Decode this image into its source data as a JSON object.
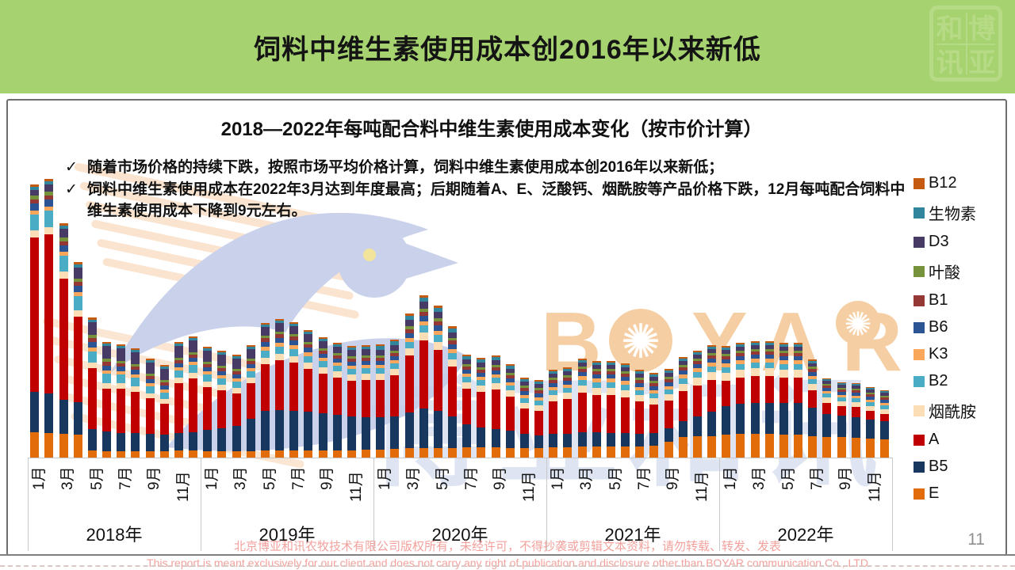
{
  "header": {
    "title": "饲料中维生素使用成本创2016年以来新低",
    "logo_chars": [
      "和",
      "博",
      "讯",
      "亚"
    ],
    "bg_color": "#A6D36F"
  },
  "chart": {
    "title": "2018—2022年每吨配合料中维生素使用成本变化（按市价计算）",
    "bullets": [
      "随着市场价格的持续下跌，按照市场平均价格计算，饲料中维生素使用成本创2016年以来新低；",
      "饲料中维生素使用成本在2022年3月达到年度最高；后期随着A、E、泛酸钙、烟酰胺等产品价格下跌，12月每吨配合饲料中维生素使用成本下降到9元左右。"
    ],
    "check_glyph": "✓",
    "years": [
      "2018年",
      "2019年",
      "2020年",
      "2021年",
      "2022年"
    ],
    "month_labels": [
      "1月",
      "3月",
      "5月",
      "7月",
      "9月",
      "11月"
    ],
    "legend": [
      {
        "label": "B12",
        "color": "#C55A11"
      },
      {
        "label": "生物素",
        "color": "#31859C"
      },
      {
        "label": "D3",
        "color": "#473B66"
      },
      {
        "label": "叶酸",
        "color": "#76933C"
      },
      {
        "label": "B1",
        "color": "#953735"
      },
      {
        "label": "B6",
        "color": "#2A5494"
      },
      {
        "label": "K3",
        "color": "#FAA75B"
      },
      {
        "label": "B2",
        "color": "#4BACC6"
      },
      {
        "label": "烟酰胺",
        "color": "#FBDDB6"
      },
      {
        "label": "A",
        "color": "#C00000"
      },
      {
        "label": "B5",
        "color": "#17375E"
      },
      {
        "label": "E",
        "color": "#E36C0A"
      }
    ]
  },
  "chart_data": {
    "type": "bar",
    "stacked": true,
    "title": "2018—2022年每吨配合料中维生素使用成本变化（按市价计算）",
    "x_years": [
      "2018",
      "2019",
      "2020",
      "2021",
      "2022"
    ],
    "x_months_per_year": 12,
    "value_unit": "元/吨",
    "note": "图中无数值轴；数值按比例估算，2022年12月约9元，2018年2月最高约39元",
    "stack_order_bottom_to_top": [
      "E",
      "B5",
      "A",
      "烟酰胺",
      "B2",
      "K3",
      "B6",
      "B1",
      "叶酸",
      "D3",
      "生物素",
      "B12"
    ],
    "series": [
      {
        "name": "E",
        "values": [
          3.5,
          3.4,
          3.3,
          3.2,
          1.0,
          0.9,
          0.9,
          0.9,
          0.9,
          0.9,
          1.0,
          1.0,
          0.9,
          0.9,
          0.9,
          0.9,
          1.0,
          1.0,
          1.0,
          1.0,
          1.0,
          1.0,
          1.0,
          1.1,
          1.1,
          1.2,
          1.3,
          1.3,
          1.3,
          1.3,
          1.4,
          1.4,
          1.4,
          1.3,
          1.3,
          1.3,
          1.4,
          1.4,
          1.5,
          1.5,
          1.5,
          1.5,
          1.6,
          1.7,
          2.2,
          2.9,
          3.0,
          3.0,
          3.2,
          3.3,
          3.3,
          3.3,
          3.2,
          3.2,
          3.0,
          2.9,
          2.9,
          2.8,
          2.7,
          2.6
        ]
      },
      {
        "name": "B5",
        "values": [
          5.7,
          5.5,
          4.8,
          4.5,
          3.0,
          2.8,
          2.6,
          2.5,
          2.4,
          2.3,
          2.4,
          2.5,
          3.0,
          3.2,
          3.5,
          4.5,
          5.5,
          5.7,
          5.6,
          5.4,
          5.2,
          5.0,
          4.8,
          4.6,
          4.5,
          4.6,
          5.0,
          5.5,
          5.2,
          4.4,
          3.2,
          2.8,
          2.6,
          2.4,
          2.0,
          1.8,
          1.9,
          1.9,
          2.0,
          2.0,
          1.9,
          1.9,
          1.8,
          1.8,
          1.9,
          2.2,
          2.8,
          3.4,
          4.0,
          4.2,
          4.3,
          4.3,
          4.4,
          4.4,
          4.0,
          3.2,
          3.0,
          2.9,
          2.7,
          2.5
        ]
      },
      {
        "name": "A",
        "values": [
          21.7,
          22.3,
          17.0,
          12.0,
          8.5,
          6.0,
          6.2,
          5.8,
          5.0,
          4.3,
          7.0,
          7.5,
          6.0,
          5.3,
          4.6,
          5.0,
          6.5,
          7.0,
          6.8,
          6.0,
          5.6,
          5.2,
          5.0,
          5.2,
          5.2,
          5.8,
          8.0,
          9.5,
          8.5,
          7.0,
          5.0,
          5.0,
          5.6,
          4.8,
          3.6,
          3.4,
          4.6,
          4.9,
          5.6,
          5.2,
          5.3,
          5.0,
          4.5,
          4.0,
          3.9,
          4.2,
          4.3,
          4.4,
          3.5,
          3.7,
          3.8,
          3.8,
          3.6,
          3.5,
          2.4,
          1.5,
          1.3,
          1.4,
          1.2,
          1.0
        ]
      },
      {
        "name": "烟酰胺",
        "values": [
          1.0,
          1.0,
          1.0,
          0.9,
          0.8,
          0.8,
          0.8,
          0.8,
          0.7,
          0.7,
          0.8,
          0.8,
          0.8,
          0.8,
          0.8,
          0.8,
          0.9,
          0.9,
          0.9,
          0.9,
          0.9,
          0.9,
          0.9,
          0.9,
          0.9,
          0.9,
          1.0,
          1.1,
          1.1,
          1.0,
          0.9,
          0.9,
          0.9,
          0.9,
          0.8,
          0.8,
          0.9,
          0.9,
          1.0,
          1.0,
          1.0,
          1.0,
          0.9,
          0.9,
          0.9,
          1.0,
          1.1,
          1.1,
          1.1,
          1.1,
          1.1,
          1.1,
          1.1,
          1.1,
          0.9,
          0.8,
          0.7,
          0.7,
          0.7,
          0.7
        ]
      },
      {
        "name": "B2",
        "values": [
          2.2,
          2.3,
          2.2,
          2.0,
          1.5,
          1.3,
          1.2,
          1.2,
          1.0,
          0.9,
          1.0,
          1.1,
          1.0,
          0.9,
          0.9,
          0.9,
          1.0,
          1.0,
          1.0,
          0.9,
          0.9,
          0.8,
          0.8,
          0.8,
          0.8,
          0.8,
          0.9,
          1.0,
          1.0,
          0.9,
          0.8,
          0.8,
          0.8,
          0.7,
          0.7,
          0.7,
          0.7,
          0.7,
          0.8,
          0.8,
          0.8,
          0.8,
          0.7,
          0.7,
          0.7,
          0.8,
          0.8,
          0.8,
          0.8,
          0.8,
          0.8,
          0.8,
          0.8,
          0.8,
          0.7,
          0.6,
          0.6,
          0.6,
          0.6,
          0.6
        ]
      },
      {
        "name": "K3",
        "values": [
          0.6,
          0.6,
          0.6,
          0.5,
          0.5,
          0.4,
          0.4,
          0.4,
          0.4,
          0.4,
          0.4,
          0.4,
          0.4,
          0.4,
          0.4,
          0.4,
          0.5,
          0.5,
          0.5,
          0.5,
          0.4,
          0.4,
          0.4,
          0.4,
          0.4,
          0.4,
          0.5,
          0.5,
          0.5,
          0.5,
          0.4,
          0.4,
          0.4,
          0.4,
          0.4,
          0.4,
          0.4,
          0.4,
          0.5,
          0.5,
          0.5,
          0.5,
          0.4,
          0.4,
          0.4,
          0.5,
          0.5,
          0.5,
          0.5,
          0.5,
          0.5,
          0.5,
          0.5,
          0.5,
          0.4,
          0.3,
          0.3,
          0.3,
          0.3,
          0.3
        ]
      },
      {
        "name": "B6",
        "values": [
          1.0,
          1.0,
          0.9,
          0.9,
          0.8,
          0.7,
          0.7,
          0.7,
          0.6,
          0.6,
          0.6,
          0.6,
          0.6,
          0.6,
          0.6,
          0.6,
          0.7,
          0.7,
          0.7,
          0.7,
          0.6,
          0.6,
          0.6,
          0.6,
          0.6,
          0.6,
          0.7,
          0.8,
          0.8,
          0.7,
          0.6,
          0.6,
          0.6,
          0.6,
          0.5,
          0.5,
          0.5,
          0.5,
          0.6,
          0.6,
          0.6,
          0.6,
          0.5,
          0.5,
          0.5,
          0.6,
          0.6,
          0.6,
          0.6,
          0.6,
          0.6,
          0.6,
          0.6,
          0.6,
          0.5,
          0.4,
          0.4,
          0.4,
          0.4,
          0.4
        ]
      },
      {
        "name": "B1",
        "values": [
          0.6,
          0.6,
          0.6,
          0.5,
          0.5,
          0.5,
          0.4,
          0.4,
          0.4,
          0.4,
          0.4,
          0.4,
          0.4,
          0.4,
          0.4,
          0.4,
          0.5,
          0.5,
          0.5,
          0.4,
          0.4,
          0.4,
          0.4,
          0.4,
          0.4,
          0.4,
          0.5,
          0.5,
          0.5,
          0.5,
          0.4,
          0.4,
          0.4,
          0.4,
          0.4,
          0.4,
          0.4,
          0.4,
          0.4,
          0.4,
          0.4,
          0.4,
          0.4,
          0.4,
          0.4,
          0.4,
          0.4,
          0.4,
          0.4,
          0.4,
          0.4,
          0.4,
          0.4,
          0.4,
          0.4,
          0.3,
          0.3,
          0.3,
          0.3,
          0.3
        ]
      },
      {
        "name": "叶酸",
        "values": [
          0.5,
          0.5,
          0.5,
          0.4,
          0.4,
          0.4,
          0.3,
          0.3,
          0.3,
          0.3,
          0.3,
          0.3,
          0.3,
          0.3,
          0.3,
          0.3,
          0.3,
          0.3,
          0.3,
          0.3,
          0.3,
          0.3,
          0.3,
          0.3,
          0.3,
          0.3,
          0.4,
          0.4,
          0.4,
          0.3,
          0.3,
          0.3,
          0.3,
          0.3,
          0.3,
          0.3,
          0.3,
          0.3,
          0.3,
          0.3,
          0.3,
          0.3,
          0.3,
          0.3,
          0.3,
          0.3,
          0.3,
          0.3,
          0.3,
          0.3,
          0.3,
          0.3,
          0.3,
          0.3,
          0.3,
          0.2,
          0.2,
          0.2,
          0.2,
          0.2
        ]
      },
      {
        "name": "D3",
        "values": [
          0.8,
          1.0,
          1.2,
          1.5,
          1.8,
          1.8,
          1.8,
          1.7,
          1.6,
          1.6,
          1.7,
          1.7,
          1.6,
          1.5,
          1.4,
          1.3,
          1.2,
          1.2,
          1.1,
          1.1,
          1.0,
          0.9,
          0.9,
          0.9,
          0.8,
          0.8,
          0.9,
          1.0,
          0.9,
          0.8,
          0.7,
          0.7,
          0.7,
          0.6,
          0.6,
          0.6,
          0.6,
          0.6,
          0.6,
          0.6,
          0.6,
          0.5,
          0.5,
          0.5,
          0.5,
          0.5,
          0.5,
          0.5,
          0.5,
          0.5,
          0.5,
          0.5,
          0.5,
          0.5,
          0.4,
          0.4,
          0.4,
          0.4,
          0.4,
          0.4
        ]
      },
      {
        "name": "生物素",
        "values": [
          0.4,
          0.4,
          0.4,
          0.4,
          0.3,
          0.3,
          0.3,
          0.3,
          0.3,
          0.3,
          0.3,
          0.3,
          0.3,
          0.3,
          0.3,
          0.3,
          0.3,
          0.3,
          0.3,
          0.3,
          0.3,
          0.3,
          0.3,
          0.3,
          0.5,
          0.5,
          0.6,
          0.6,
          0.6,
          0.5,
          0.4,
          0.4,
          0.4,
          0.4,
          0.3,
          0.3,
          0.3,
          0.3,
          0.3,
          0.3,
          0.3,
          0.3,
          0.3,
          0.3,
          0.3,
          0.3,
          0.3,
          0.3,
          0.3,
          0.3,
          0.3,
          0.3,
          0.3,
          0.3,
          0.3,
          0.2,
          0.2,
          0.2,
          0.2,
          0.2
        ]
      },
      {
        "name": "B12",
        "values": [
          0.3,
          0.3,
          0.3,
          0.3,
          0.3,
          0.2,
          0.2,
          0.2,
          0.2,
          0.2,
          0.2,
          0.2,
          0.2,
          0.2,
          0.2,
          0.2,
          0.2,
          0.2,
          0.2,
          0.2,
          0.2,
          0.2,
          0.2,
          0.2,
          0.2,
          0.2,
          0.3,
          0.3,
          0.3,
          0.3,
          0.2,
          0.2,
          0.2,
          0.2,
          0.2,
          0.2,
          0.2,
          0.2,
          0.2,
          0.2,
          0.2,
          0.2,
          0.2,
          0.2,
          0.2,
          0.2,
          0.2,
          0.2,
          0.2,
          0.2,
          0.2,
          0.2,
          0.2,
          0.2,
          0.2,
          0.1,
          0.1,
          0.1,
          0.1,
          0.1
        ]
      }
    ]
  },
  "watermark": {
    "brand": "BOYAR",
    "brand_cn": "博亚和讯",
    "brand_color": "#F5C693",
    "cn_color": "#C4CEE8"
  },
  "footer": {
    "cn": "北京博亚和讯农牧技术有限公司版权所有，未经许可，不得抄袭或剪辑文本资料，请勿转载、转发、发表",
    "en": "This report is meant exclusively for our client and does not carry any right of publication and disclosure other than BOYAR communication Co., LTD",
    "page": "11"
  }
}
